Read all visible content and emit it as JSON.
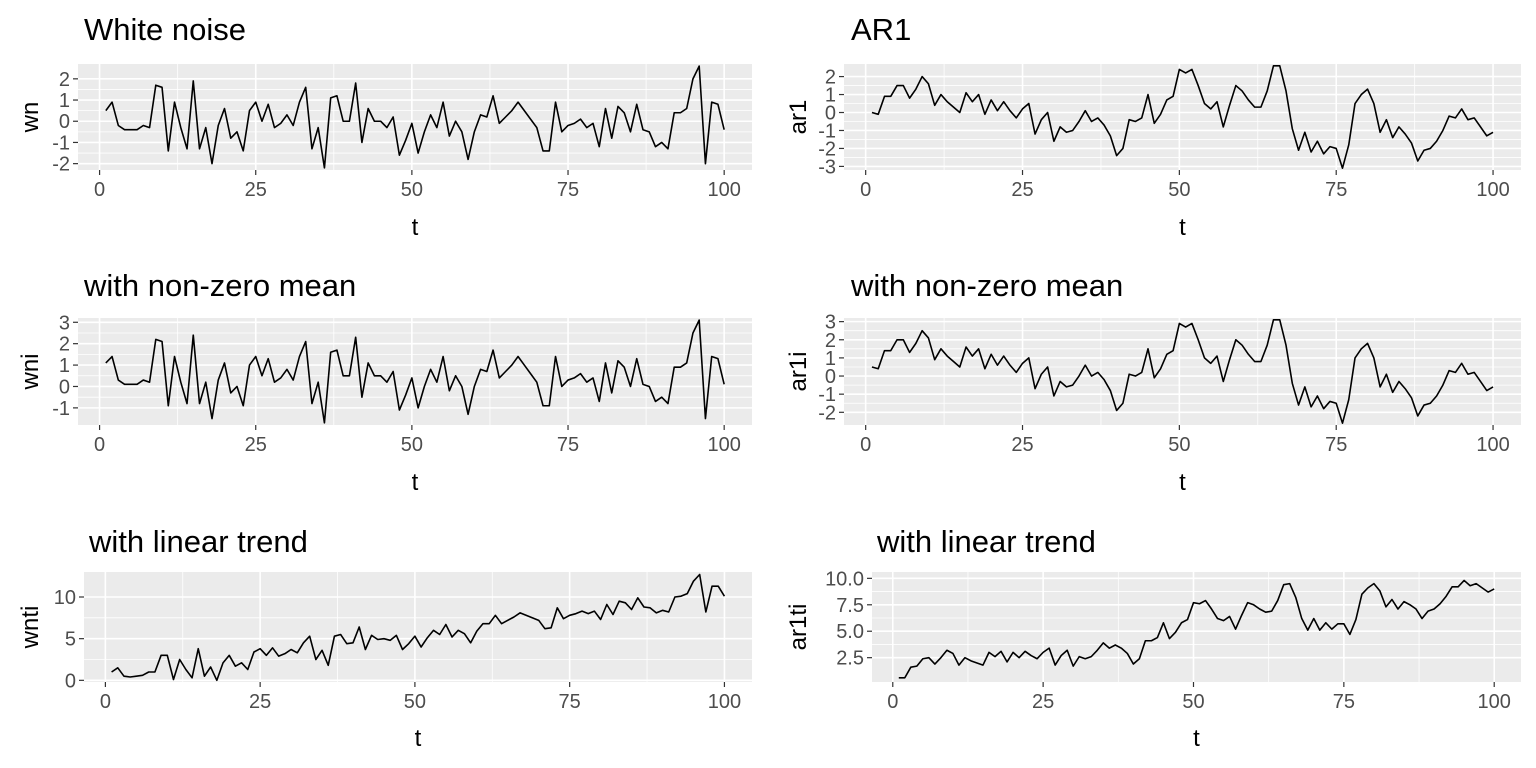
{
  "chart_data": [
    {
      "type": "line",
      "title": "White noise",
      "xlabel": "t",
      "ylabel": "wn",
      "xlim": [
        1,
        100
      ],
      "ylim": [
        -2.3,
        2.7
      ],
      "xticks": [
        0,
        25,
        50,
        75,
        100
      ],
      "xtick_labels": [
        "0",
        "25",
        "50",
        "75",
        "100"
      ],
      "yticks": [
        -2,
        -1,
        0,
        1,
        2
      ],
      "ytick_labels": [
        "-2",
        "-1",
        "0",
        "1",
        "2"
      ],
      "grid": true,
      "series": [
        {
          "values": [
            0.5,
            0.9,
            -0.2,
            -0.4,
            -0.4,
            -0.4,
            -0.2,
            -0.3,
            1.7,
            1.6,
            -1.4,
            0.9,
            -0.3,
            -1.3,
            1.9,
            -1.3,
            -0.3,
            -2.0,
            -0.2,
            0.6,
            -0.8,
            -0.5,
            -1.4,
            0.5,
            0.9,
            0.0,
            0.8,
            -0.3,
            -0.1,
            0.3,
            -0.2,
            0.9,
            1.6,
            -1.3,
            -0.3,
            -2.2,
            1.1,
            1.2,
            0.0,
            0.0,
            1.8,
            -1.0,
            0.6,
            0.0,
            0.0,
            -0.3,
            0.2,
            -1.6,
            -0.9,
            -0.1,
            -1.5,
            -0.5,
            0.3,
            -0.3,
            0.9,
            -0.7,
            0.0,
            -0.5,
            -1.8,
            -0.5,
            0.3,
            0.2,
            1.2,
            -0.1,
            0.2,
            0.5,
            0.9,
            0.5,
            0.1,
            -0.3,
            -1.4,
            -1.4,
            0.9,
            -0.5,
            -0.2,
            -0.1,
            0.1,
            -0.3,
            -0.1,
            -1.2,
            0.6,
            -0.8,
            0.7,
            0.4,
            -0.5,
            0.8,
            -0.4,
            -0.5,
            -1.2,
            -1.0,
            -1.3,
            0.4,
            0.4,
            0.6,
            2.0,
            2.6,
            -2.0,
            0.9,
            0.8,
            -0.4
          ]
        }
      ]
    },
    {
      "type": "line",
      "title": "AR1",
      "xlabel": "t",
      "ylabel": "ar1",
      "xlim": [
        1,
        100
      ],
      "ylim": [
        -3.2,
        2.7
      ],
      "xticks": [
        0,
        25,
        50,
        75,
        100
      ],
      "xtick_labels": [
        "0",
        "25",
        "50",
        "75",
        "100"
      ],
      "yticks": [
        -3,
        -2,
        -1,
        0,
        1,
        2
      ],
      "ytick_labels": [
        "-3",
        "-2",
        "-1",
        "0",
        "1",
        "2"
      ],
      "grid": true,
      "series": [
        {
          "values": [
            0.0,
            -0.1,
            0.9,
            0.9,
            1.5,
            1.5,
            0.8,
            1.3,
            2.0,
            1.6,
            0.4,
            1.0,
            0.6,
            0.3,
            0.0,
            1.1,
            0.6,
            1.0,
            -0.1,
            0.7,
            0.1,
            0.6,
            0.1,
            -0.3,
            0.2,
            0.5,
            -1.2,
            -0.4,
            0.0,
            -1.6,
            -0.8,
            -1.1,
            -1.0,
            -0.5,
            0.1,
            -0.5,
            -0.3,
            -0.7,
            -1.3,
            -2.4,
            -2.0,
            -0.4,
            -0.5,
            -0.3,
            1.0,
            -0.6,
            -0.1,
            0.7,
            0.9,
            2.4,
            2.2,
            2.4,
            1.5,
            0.5,
            0.2,
            0.6,
            -0.8,
            0.4,
            1.5,
            1.2,
            0.7,
            0.3,
            0.3,
            1.2,
            2.6,
            2.6,
            1.2,
            -0.9,
            -2.1,
            -1.1,
            -2.2,
            -1.6,
            -2.3,
            -1.9,
            -2.0,
            -3.1,
            -1.8,
            0.5,
            1.0,
            1.3,
            0.5,
            -1.1,
            -0.4,
            -1.4,
            -0.8,
            -1.2,
            -1.7,
            -2.7,
            -2.1,
            -2.0,
            -1.6,
            -1.0,
            -0.2,
            -0.3,
            0.2,
            -0.4,
            -0.3,
            -0.8,
            -1.3,
            -1.1
          ]
        }
      ]
    },
    {
      "type": "line",
      "title": "with non-zero mean",
      "xlabel": "t",
      "ylabel": "wni",
      "xlim": [
        1,
        100
      ],
      "ylim": [
        -1.8,
        3.2
      ],
      "xticks": [
        0,
        25,
        50,
        75,
        100
      ],
      "xtick_labels": [
        "0",
        "25",
        "50",
        "75",
        "100"
      ],
      "yticks": [
        -1,
        0,
        1,
        2,
        3
      ],
      "ytick_labels": [
        "-1",
        "0",
        "1",
        "2",
        "3"
      ],
      "grid": true,
      "series": [
        {
          "values": [
            1.1,
            1.4,
            0.3,
            0.1,
            0.1,
            0.1,
            0.3,
            0.2,
            2.2,
            2.1,
            -0.9,
            1.4,
            0.2,
            -0.8,
            2.4,
            -0.8,
            0.2,
            -1.5,
            0.3,
            1.1,
            -0.3,
            0.0,
            -0.9,
            1.0,
            1.4,
            0.5,
            1.3,
            0.2,
            0.4,
            0.8,
            0.3,
            1.4,
            2.1,
            -0.8,
            0.2,
            -1.7,
            1.6,
            1.7,
            0.5,
            0.5,
            2.3,
            -0.5,
            1.1,
            0.5,
            0.5,
            0.2,
            0.7,
            -1.1,
            -0.4,
            0.4,
            -1.0,
            0.0,
            0.8,
            0.2,
            1.4,
            -0.2,
            0.5,
            0.0,
            -1.3,
            0.0,
            0.8,
            0.7,
            1.7,
            0.4,
            0.7,
            1.0,
            1.4,
            1.0,
            0.6,
            0.2,
            -0.9,
            -0.9,
            1.4,
            0.0,
            0.3,
            0.4,
            0.6,
            0.2,
            0.4,
            -0.7,
            1.1,
            -0.3,
            1.2,
            0.9,
            0.0,
            1.3,
            0.1,
            0.0,
            -0.7,
            -0.5,
            -0.8,
            0.9,
            0.9,
            1.1,
            2.5,
            3.1,
            -1.5,
            1.4,
            1.3,
            0.1
          ]
        }
      ]
    },
    {
      "type": "line",
      "title": "with non-zero mean",
      "xlabel": "t",
      "ylabel": "ar1i",
      "xlim": [
        1,
        100
      ],
      "ylim": [
        -2.7,
        3.2
      ],
      "xticks": [
        0,
        25,
        50,
        75,
        100
      ],
      "xtick_labels": [
        "0",
        "25",
        "50",
        "75",
        "100"
      ],
      "yticks": [
        -2,
        -1,
        0,
        1,
        2,
        3
      ],
      "ytick_labels": [
        "-2",
        "-1",
        "0",
        "1",
        "2",
        "3"
      ],
      "grid": true,
      "series": [
        {
          "values": [
            0.5,
            0.4,
            1.4,
            1.4,
            2.0,
            2.0,
            1.3,
            1.8,
            2.5,
            2.1,
            0.9,
            1.5,
            1.1,
            0.8,
            0.5,
            1.6,
            1.1,
            1.5,
            0.4,
            1.2,
            0.6,
            1.1,
            0.6,
            0.2,
            0.7,
            1.0,
            -0.7,
            0.1,
            0.5,
            -1.1,
            -0.3,
            -0.6,
            -0.5,
            0.0,
            0.6,
            0.0,
            0.2,
            -0.2,
            -0.8,
            -1.9,
            -1.5,
            0.1,
            0.0,
            0.2,
            1.5,
            -0.1,
            0.4,
            1.2,
            1.4,
            2.9,
            2.7,
            2.9,
            2.0,
            1.0,
            0.7,
            1.1,
            -0.3,
            0.9,
            2.0,
            1.7,
            1.2,
            0.8,
            0.8,
            1.7,
            3.1,
            3.1,
            1.7,
            -0.4,
            -1.6,
            -0.6,
            -1.7,
            -1.1,
            -1.8,
            -1.4,
            -1.5,
            -2.6,
            -1.3,
            1.0,
            1.5,
            1.8,
            1.0,
            -0.6,
            0.1,
            -0.9,
            -0.3,
            -0.7,
            -1.2,
            -2.2,
            -1.6,
            -1.5,
            -1.1,
            -0.5,
            0.3,
            0.2,
            0.7,
            0.1,
            0.2,
            -0.3,
            -0.8,
            -0.6
          ]
        }
      ]
    },
    {
      "type": "line",
      "title": "with linear trend",
      "xlabel": "t",
      "ylabel": "wnti",
      "xlim": [
        1,
        100
      ],
      "ylim": [
        -0.2,
        13.0
      ],
      "xticks": [
        0,
        25,
        50,
        75,
        100
      ],
      "xtick_labels": [
        "0",
        "25",
        "50",
        "75",
        "100"
      ],
      "yticks": [
        0,
        5,
        10
      ],
      "ytick_labels": [
        "0",
        "5",
        "10"
      ],
      "grid": true,
      "series": [
        {
          "values": [
            1.0,
            1.5,
            0.5,
            0.4,
            0.5,
            0.6,
            1.0,
            1.0,
            3.0,
            3.0,
            0.1,
            2.5,
            1.3,
            0.3,
            3.8,
            0.5,
            1.6,
            0.0,
            2.1,
            3.0,
            1.7,
            2.1,
            1.3,
            3.4,
            3.8,
            3.0,
            3.9,
            2.9,
            3.2,
            3.7,
            3.3,
            4.5,
            5.3,
            2.5,
            3.6,
            1.8,
            5.3,
            5.5,
            4.4,
            4.5,
            6.4,
            3.7,
            5.4,
            4.9,
            5.0,
            4.8,
            5.4,
            3.7,
            4.4,
            5.3,
            4.0,
            5.1,
            6.0,
            5.5,
            6.7,
            5.2,
            6.0,
            5.6,
            4.5,
            5.9,
            6.8,
            6.8,
            7.8,
            6.8,
            7.2,
            7.6,
            8.1,
            7.8,
            7.5,
            7.2,
            6.2,
            6.3,
            8.7,
            7.4,
            7.8,
            8.0,
            8.3,
            8.0,
            8.3,
            7.3,
            9.1,
            7.9,
            9.5,
            9.3,
            8.5,
            9.9,
            8.8,
            8.7,
            8.1,
            8.4,
            8.2,
            10.0,
            10.1,
            10.4,
            11.9,
            12.7,
            8.2,
            11.3,
            11.3,
            10.1
          ]
        }
      ]
    },
    {
      "type": "line",
      "title": "with linear trend",
      "xlabel": "t",
      "ylabel": "ar1ti",
      "xlim": [
        1,
        100
      ],
      "ylim": [
        0.2,
        10.6
      ],
      "xticks": [
        0,
        25,
        50,
        75,
        100
      ],
      "xtick_labels": [
        "0",
        "25",
        "50",
        "75",
        "100"
      ],
      "yticks": [
        2.5,
        5.0,
        7.5,
        10.0
      ],
      "ytick_labels": [
        "2.5",
        "5.0",
        "7.5",
        "10.0"
      ],
      "grid": true,
      "series": [
        {
          "values": [
            0.6,
            0.6,
            1.6,
            1.7,
            2.4,
            2.5,
            1.9,
            2.5,
            3.2,
            2.9,
            1.8,
            2.5,
            2.2,
            2.0,
            1.8,
            3.0,
            2.6,
            3.1,
            2.1,
            3.0,
            2.5,
            3.1,
            2.7,
            2.4,
            3.0,
            3.4,
            1.8,
            2.7,
            3.2,
            1.7,
            2.6,
            2.4,
            2.6,
            3.2,
            3.9,
            3.4,
            3.7,
            3.4,
            2.9,
            1.9,
            2.4,
            4.1,
            4.1,
            4.4,
            5.8,
            4.3,
            4.9,
            5.8,
            6.1,
            7.7,
            7.6,
            7.9,
            7.1,
            6.2,
            6.0,
            6.4,
            5.2,
            6.5,
            7.7,
            7.5,
            7.1,
            6.8,
            6.9,
            7.9,
            9.4,
            9.5,
            8.2,
            6.2,
            5.1,
            6.2,
            5.1,
            5.8,
            5.2,
            5.7,
            5.7,
            4.7,
            6.1,
            8.5,
            9.1,
            9.5,
            8.8,
            7.3,
            8.0,
            7.1,
            7.8,
            7.5,
            7.1,
            6.2,
            6.9,
            7.1,
            7.6,
            8.3,
            9.2,
            9.2,
            9.8,
            9.3,
            9.5,
            9.1,
            8.7,
            9.0
          ]
        }
      ]
    }
  ]
}
